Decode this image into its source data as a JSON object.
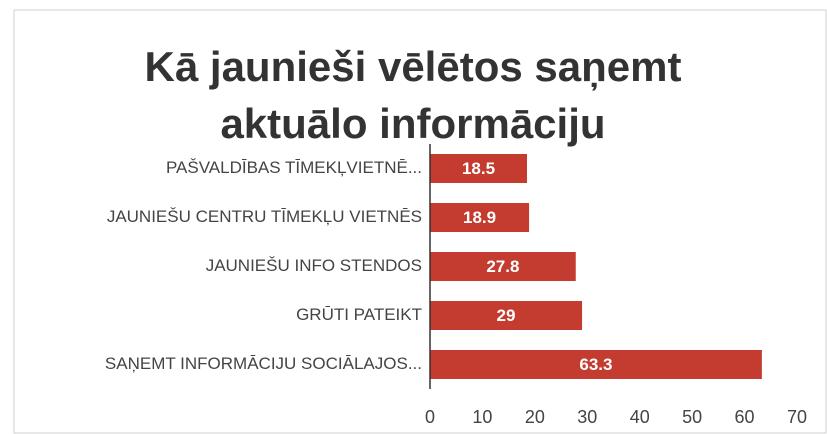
{
  "chart_data": {
    "type": "bar",
    "orientation": "horizontal",
    "title": [
      "Kā jaunieši vēlētos saņemt",
      "aktuālo informāciju"
    ],
    "categories": [
      "PAŠVALDĪBAS TĪMEKĻVIETNĒ...",
      "JAUNIEŠU CENTRU TĪMEKĻU VIETNĒS",
      "JAUNIEŠU INFO STENDOS",
      "GRŪTI PATEIKT",
      "SAŅEMT INFORMĀCIJU SOCIĀLAJOS..."
    ],
    "values": [
      18.5,
      18.9,
      27.8,
      29,
      63.3
    ],
    "color": "#c43b2f",
    "xlim": [
      0,
      70
    ],
    "xticks": [
      0,
      10,
      20,
      30,
      40,
      50,
      60,
      70
    ],
    "grid": false
  }
}
